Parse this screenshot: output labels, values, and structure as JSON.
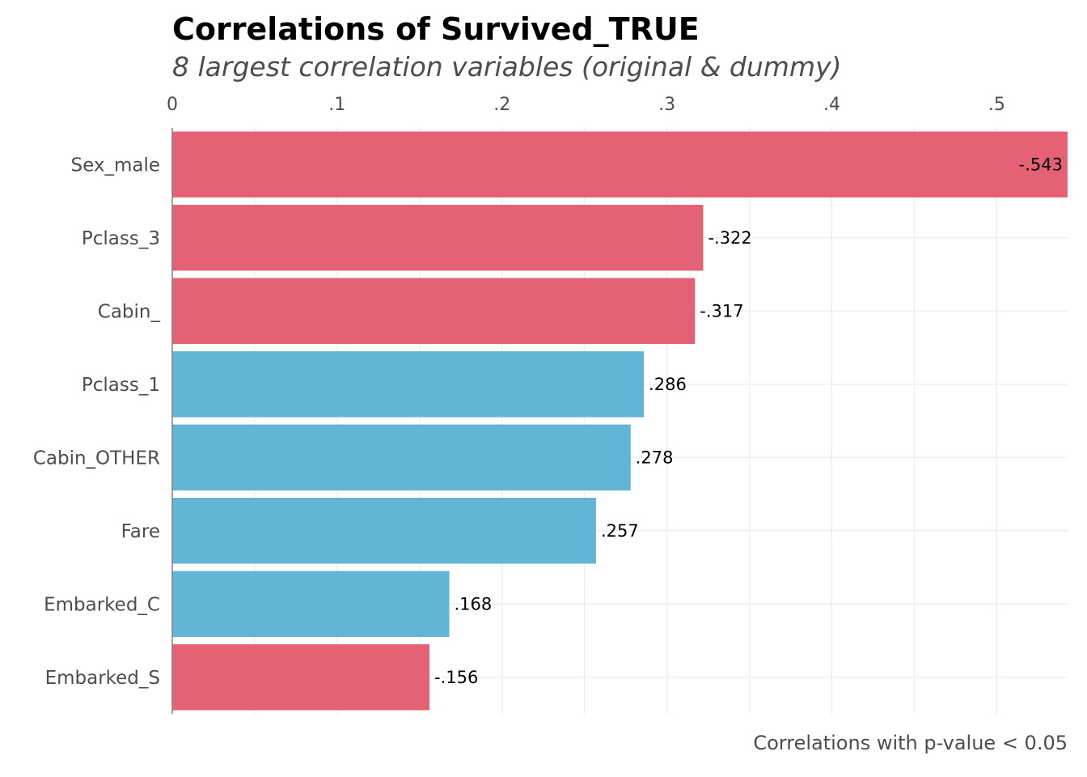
{
  "title": "Correlations of Survived_TRUE",
  "subtitle": "8 largest correlation variables (original & dummy)",
  "caption": "Correlations with p-value < 0.05",
  "colors": {
    "negative": "#e56276",
    "positive": "#62b5d4",
    "grid": "#ebebeb",
    "axis": "#7f7f7f",
    "text": "#4d4d4d",
    "label": "#000000"
  },
  "chart_data": {
    "type": "bar",
    "orientation": "horizontal",
    "categories": [
      "Sex_male",
      "Pclass_3",
      "Cabin_",
      "Pclass_1",
      "Cabin_OTHER",
      "Fare",
      "Embarked_C",
      "Embarked_S"
    ],
    "values": [
      -0.543,
      -0.322,
      -0.317,
      0.286,
      0.278,
      0.257,
      0.168,
      -0.156
    ],
    "data_labels": [
      "-.543",
      "-.322",
      "-.317",
      ".286",
      ".278",
      ".257",
      ".168",
      "-.156"
    ],
    "x_ticks": [
      0,
      0.1,
      0.2,
      0.3,
      0.4,
      0.5
    ],
    "x_tick_labels": [
      "0",
      ".1",
      ".2",
      ".3",
      ".4",
      ".5"
    ],
    "xlim": [
      0,
      0.543
    ],
    "bar_length": "absolute value",
    "x_axis_position": "top",
    "grid": true,
    "legend": "none"
  }
}
